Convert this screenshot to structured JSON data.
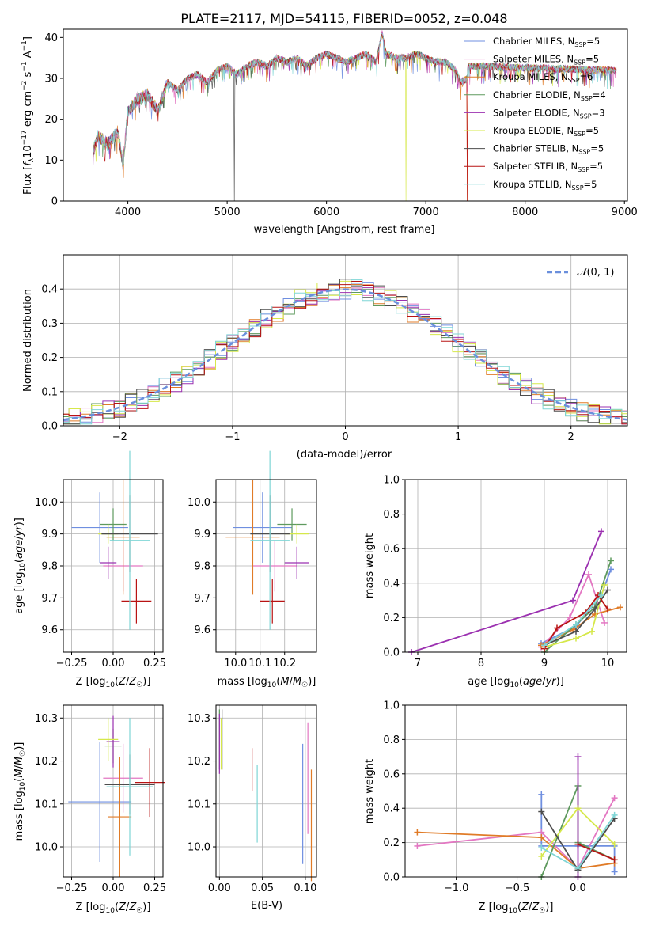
{
  "palette": [
    "#6f8fe0",
    "#e377c2",
    "#e07b27",
    "#5e9a5e",
    "#9b30b0",
    "#d6e84a",
    "#4d4d4d",
    "#b81313",
    "#7fd6d6"
  ],
  "chart_data": [
    {
      "id": "spectrum",
      "type": "line",
      "title": "PLATE=2117, MJD=54115, FIBERID=0052, z=0.048",
      "xlabel": "wavelength [Angstrom, rest frame]",
      "ylabel": "Flux [fλ10⁻¹⁷ erg cm⁻² s⁻¹ A⁻¹]",
      "xlim": [
        3350,
        9030
      ],
      "ylim": [
        0,
        42
      ],
      "xticks": [
        4000,
        5000,
        6000,
        7000,
        8000,
        9000
      ],
      "yticks": [
        0,
        10,
        20,
        30,
        40
      ],
      "legend_position": "upper right",
      "x": [
        3650,
        3700,
        3800,
        3900,
        3950,
        4000,
        4100,
        4200,
        4300,
        4400,
        4500,
        4600,
        4700,
        4800,
        4900,
        5000,
        5100,
        5200,
        5300,
        5400,
        5500,
        5600,
        5700,
        5800,
        5900,
        6000,
        6100,
        6200,
        6300,
        6400,
        6500,
        6560,
        6600,
        6700,
        6800,
        6900,
        7000,
        7100,
        7200,
        7300,
        7350,
        7420
      ],
      "y": [
        12,
        16,
        14,
        17,
        9,
        22,
        25,
        26,
        22,
        29,
        27,
        30,
        31,
        29,
        32,
        33,
        31,
        33,
        34,
        33,
        35,
        34,
        35,
        33,
        35,
        36,
        35,
        34,
        35,
        36,
        34,
        41,
        36,
        35,
        35,
        36,
        35,
        34,
        34,
        32,
        29,
        30
      ],
      "series": [
        {
          "name": "Chabrier MILES, N_SSP=5",
          "cut": 0
        },
        {
          "name": "Salpeter MILES, N_SSP=5",
          "cut": 0
        },
        {
          "name": "Kroupa MILES, N_SSP=6",
          "cut": 7420
        },
        {
          "name": "Chabrier ELODIE, N_SSP=4",
          "cut": 0
        },
        {
          "name": "Salpeter ELODIE, N_SSP=3",
          "cut": 0
        },
        {
          "name": "Kroupa ELODIE, N_SSP=5",
          "cut": 6800
        },
        {
          "name": "Chabrier STELIB, N_SSP=5",
          "cut": 5070
        },
        {
          "name": "Salpeter STELIB, N_SSP=5",
          "cut": 7420
        },
        {
          "name": "Kroupa STELIB, N_SSP=5",
          "cut": 0
        }
      ]
    },
    {
      "id": "residuals",
      "type": "line",
      "xlabel": "(data-model)/error",
      "ylabel": "Normed distribution",
      "xlim": [
        -2.5,
        2.5
      ],
      "ylim": [
        0,
        0.5
      ],
      "xticks": [
        -2,
        -1,
        0,
        1,
        2
      ],
      "yticks": [
        0.0,
        0.1,
        0.2,
        0.3,
        0.4
      ],
      "reference_curve": "𝒩(0,1)",
      "bin_width": 0.1,
      "description": "9 step histograms of normalized residuals closely following a standard normal curve"
    },
    {
      "id": "age-vs-Z",
      "type": "scatter",
      "xlabel": "Z [log10(Z/Z☉)]",
      "ylabel": "age  [log10(age/yr)]",
      "xlim": [
        -0.3,
        0.3
      ],
      "ylim": [
        9.53,
        10.07
      ],
      "xticks": [
        -0.25,
        0.0,
        0.25
      ],
      "yticks": [
        9.6,
        9.7,
        9.8,
        9.9,
        10.0
      ],
      "points": [
        {
          "x": -0.08,
          "y": 9.92,
          "xerr": 0.17,
          "yerr": 0.11
        },
        {
          "x": 0.06,
          "y": 9.8,
          "xerr": 0.12,
          "yerr": 0.08
        },
        {
          "x": 0.06,
          "y": 9.89,
          "xerr": 0.1,
          "yerr": 0.18
        },
        {
          "x": 0.0,
          "y": 9.93,
          "xerr": 0.08,
          "yerr": 0.05
        },
        {
          "x": -0.03,
          "y": 9.81,
          "xerr": 0.05,
          "yerr": 0.05
        },
        {
          "x": -0.03,
          "y": 9.9,
          "xerr": 0.06,
          "yerr": 0.03
        },
        {
          "x": 0.1,
          "y": 9.9,
          "xerr": 0.17,
          "yerr": 0.12
        },
        {
          "x": 0.14,
          "y": 9.69,
          "xerr": 0.09,
          "yerr": 0.07
        },
        {
          "x": 0.1,
          "y": 9.88,
          "xerr": 0.12,
          "yerr": 0.28
        }
      ]
    },
    {
      "id": "age-vs-mass",
      "type": "scatter",
      "xlabel": "mass [log10(M/M☉)]",
      "ylabel": "",
      "xlim": [
        9.92,
        10.33
      ],
      "ylim": [
        9.53,
        10.07
      ],
      "xticks": [
        10.0,
        10.1,
        10.2
      ],
      "yticks": [
        9.6,
        9.7,
        9.8,
        9.9,
        10.0
      ],
      "points": [
        {
          "x": 10.11,
          "y": 9.92,
          "xerr": 0.12,
          "yerr": 0.11
        },
        {
          "x": 10.16,
          "y": 9.8,
          "xerr": 0.09,
          "yerr": 0.08
        },
        {
          "x": 10.07,
          "y": 9.89,
          "xerr": 0.11,
          "yerr": 0.18
        },
        {
          "x": 10.23,
          "y": 9.93,
          "xerr": 0.06,
          "yerr": 0.05
        },
        {
          "x": 10.25,
          "y": 9.81,
          "xerr": 0.05,
          "yerr": 0.05
        },
        {
          "x": 10.25,
          "y": 9.9,
          "xerr": 0.05,
          "yerr": 0.03
        },
        {
          "x": 10.14,
          "y": 9.9,
          "xerr": 0.08,
          "yerr": 0.12
        },
        {
          "x": 10.15,
          "y": 9.69,
          "xerr": 0.05,
          "yerr": 0.07
        },
        {
          "x": 10.14,
          "y": 9.88,
          "xerr": 0.08,
          "yerr": 0.28
        }
      ]
    },
    {
      "id": "massweight-vs-age",
      "type": "line",
      "xlabel": "age  [log10(age/yr)]",
      "ylabel": "mass weight",
      "xlim": [
        6.8,
        10.3
      ],
      "ylim": [
        0,
        1.0
      ],
      "xticks": [
        7,
        8,
        9,
        10
      ],
      "yticks": [
        0.0,
        0.2,
        0.4,
        0.6,
        0.8,
        1.0
      ],
      "series": [
        {
          "x": [
            8.95,
            9.5,
            9.9,
            10.05
          ],
          "y": [
            0.05,
            0.15,
            0.33,
            0.48
          ]
        },
        {
          "x": [
            8.95,
            9.4,
            9.7,
            9.95
          ],
          "y": [
            0.03,
            0.2,
            0.45,
            0.17
          ]
        },
        {
          "x": [
            8.95,
            9.45,
            9.8,
            10.2
          ],
          "y": [
            0.04,
            0.13,
            0.22,
            0.26
          ]
        },
        {
          "x": [
            9.0,
            9.5,
            9.8,
            10.05
          ],
          "y": [
            0.0,
            0.16,
            0.26,
            0.53
          ]
        },
        {
          "x": [
            6.9,
            9.45,
            9.9
          ],
          "y": [
            0.0,
            0.3,
            0.7
          ]
        },
        {
          "x": [
            9.0,
            9.5,
            9.75,
            9.95
          ],
          "y": [
            0.03,
            0.08,
            0.12,
            0.39
          ]
        },
        {
          "x": [
            9.0,
            9.5,
            9.8,
            10.0
          ],
          "y": [
            0.04,
            0.12,
            0.25,
            0.36
          ]
        },
        {
          "x": [
            9.0,
            9.2,
            9.65,
            9.85,
            10.0
          ],
          "y": [
            0.02,
            0.14,
            0.23,
            0.33,
            0.25
          ]
        },
        {
          "x": [
            9.0,
            9.5,
            9.9
          ],
          "y": [
            0.04,
            0.16,
            0.33
          ]
        }
      ]
    },
    {
      "id": "mass-vs-Z",
      "type": "scatter",
      "xlabel": "Z [log10(Z/Z☉)]",
      "ylabel": "mass [log10(M/M☉)]",
      "xlim": [
        -0.3,
        0.3
      ],
      "ylim": [
        9.93,
        10.33
      ],
      "xticks": [
        -0.25,
        0.0,
        0.25
      ],
      "yticks": [
        10.0,
        10.1,
        10.2,
        10.3
      ],
      "points": [
        {
          "x": -0.08,
          "y": 10.105,
          "xerr": 0.19,
          "yerr": 0.14
        },
        {
          "x": 0.06,
          "y": 10.16,
          "xerr": 0.12,
          "yerr": 0.08
        },
        {
          "x": 0.04,
          "y": 10.07,
          "xerr": 0.07,
          "yerr": 0.14
        },
        {
          "x": 0.0,
          "y": 10.235,
          "xerr": 0.05,
          "yerr": 0.04
        },
        {
          "x": 0.0,
          "y": 10.245,
          "xerr": 0.04,
          "yerr": 0.06
        },
        {
          "x": -0.03,
          "y": 10.25,
          "xerr": 0.06,
          "yerr": 0.05
        },
        {
          "x": 0.1,
          "y": 10.145,
          "xerr": 0.15,
          "yerr": 0.07
        },
        {
          "x": 0.22,
          "y": 10.15,
          "xerr": 0.09,
          "yerr": 0.08
        },
        {
          "x": 0.1,
          "y": 10.14,
          "xerr": 0.14,
          "yerr": 0.16
        }
      ]
    },
    {
      "id": "ebv",
      "type": "scatter",
      "xlabel": "E(B-V)",
      "ylabel": "",
      "xlim": [
        -0.004,
        0.113
      ],
      "ylim": [
        9.93,
        10.33
      ],
      "xticks": [
        0.0,
        0.05,
        0.1
      ],
      "tick_labels": [
        "0.00",
        "0.05",
        "0.10"
      ],
      "yticks": [
        10.0,
        10.1,
        10.2,
        10.3
      ],
      "points": [
        {
          "x": 0.097,
          "y": 10.1,
          "xerr": 0.0,
          "yerr": 0.14
        },
        {
          "x": 0.103,
          "y": 10.16,
          "xerr": 0.0,
          "yerr": 0.13
        },
        {
          "x": 0.107,
          "y": 10.05,
          "xerr": 0.0,
          "yerr": 0.13
        },
        {
          "x": 0.0,
          "y": 10.25,
          "xerr": 0.0,
          "yerr": 0.07
        },
        {
          "x": 0.0,
          "y": 10.24,
          "xerr": 0.0,
          "yerr": 0.07
        },
        {
          "x": 0.002,
          "y": 10.24,
          "xerr": 0.0,
          "yerr": 0.06
        },
        {
          "x": 0.003,
          "y": 10.25,
          "xerr": 0.0,
          "yerr": 0.07
        },
        {
          "x": 0.038,
          "y": 10.18,
          "xerr": 0.0,
          "yerr": 0.05
        },
        {
          "x": 0.044,
          "y": 10.1,
          "xerr": 0.0,
          "yerr": 0.09
        }
      ]
    },
    {
      "id": "massweight-vs-Z",
      "type": "line",
      "xlabel": "Z [log10(Z/Z☉)]",
      "ylabel": "mass weight",
      "xlim": [
        -1.42,
        0.4
      ],
      "ylim": [
        0,
        1.0
      ],
      "xticks": [
        -1.0,
        -0.5,
        0.0
      ],
      "yticks": [
        0.0,
        0.2,
        0.4,
        0.6,
        0.8,
        1.0
      ],
      "series": [
        {
          "x": [
            -0.3,
            -0.3,
            0.0,
            0.3,
            0.3
          ],
          "y": [
            0.48,
            0.18,
            0.18,
            0.18,
            0.03
          ]
        },
        {
          "x": [
            -1.32,
            -0.3,
            0.0,
            0.3
          ],
          "y": [
            0.18,
            0.26,
            0.05,
            0.46
          ]
        },
        {
          "x": [
            -1.32,
            -0.3,
            0.0,
            0.3
          ],
          "y": [
            0.26,
            0.23,
            0.05,
            0.08
          ]
        },
        {
          "x": [
            -0.3,
            0.0,
            0.0,
            0.3
          ],
          "y": [
            0.0,
            0.53,
            0.2,
            0.1
          ]
        },
        {
          "x": [
            0.0,
            0.0
          ],
          "y": [
            0.0,
            0.7
          ]
        },
        {
          "x": [
            -0.3,
            0.0,
            0.3
          ],
          "y": [
            0.12,
            0.4,
            0.19
          ]
        },
        {
          "x": [
            -0.3,
            0.0,
            0.3
          ],
          "y": [
            0.38,
            0.04,
            0.34
          ]
        },
        {
          "x": [
            0.0,
            0.3
          ],
          "y": [
            0.19,
            0.1
          ]
        },
        {
          "x": [
            -0.3,
            0.0,
            0.3
          ],
          "y": [
            0.17,
            0.05,
            0.36
          ]
        }
      ]
    }
  ]
}
